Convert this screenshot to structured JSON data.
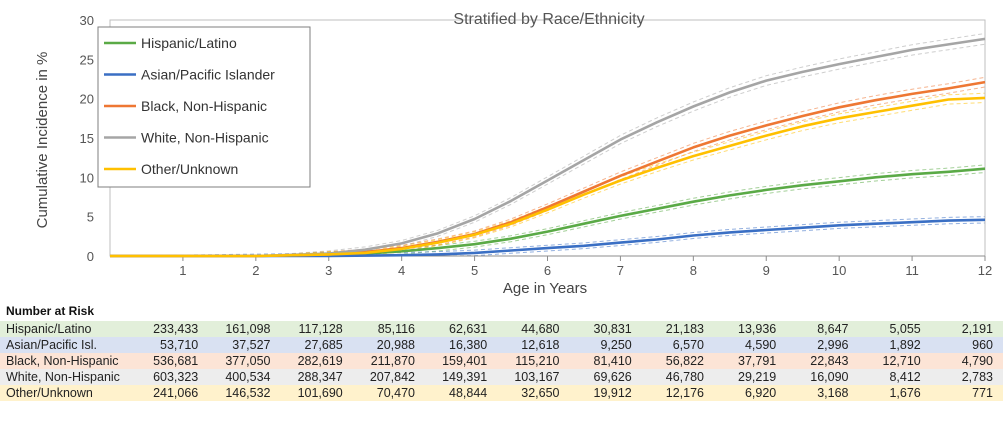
{
  "chart_data": {
    "type": "line",
    "title": "Stratified by Race/Ethnicity",
    "xlabel": "Age in Years",
    "ylabel": "Cumulative Incidence in %",
    "xlim": [
      0,
      12
    ],
    "ylim": [
      0,
      30
    ],
    "xticks": [
      1,
      2,
      3,
      4,
      5,
      6,
      7,
      8,
      9,
      10,
      11,
      12
    ],
    "yticks": [
      0,
      5,
      10,
      15,
      20,
      25,
      30
    ],
    "grid": false,
    "legend_position": "top-left",
    "confidence_band": "dashed",
    "series": [
      {
        "name": "Hispanic/Latino",
        "color": "#5aaa46",
        "x": [
          0,
          2,
          3,
          3.5,
          4,
          4.5,
          5,
          5.5,
          6,
          6.5,
          7,
          7.5,
          8,
          8.5,
          9,
          9.5,
          10,
          10.5,
          11,
          11.5,
          12
        ],
        "y": [
          0,
          0,
          0.15,
          0.3,
          0.6,
          1.0,
          1.5,
          2.2,
          3.1,
          4.1,
          5.1,
          6.0,
          6.9,
          7.7,
          8.4,
          9.0,
          9.5,
          10.0,
          10.4,
          10.7,
          11.1
        ]
      },
      {
        "name": "Asian/Pacific Islander",
        "color": "#3a6fc4",
        "x": [
          0,
          3,
          4,
          4.5,
          5,
          5.5,
          6,
          6.5,
          7,
          7.5,
          8,
          8.5,
          9,
          9.5,
          10,
          10.5,
          11,
          11.5,
          12
        ],
        "y": [
          0,
          0,
          0.1,
          0.2,
          0.4,
          0.7,
          1.0,
          1.3,
          1.7,
          2.1,
          2.6,
          3.0,
          3.3,
          3.6,
          3.9,
          4.1,
          4.3,
          4.5,
          4.6
        ]
      },
      {
        "name": "Black, Non-Hispanic",
        "color": "#ee7733",
        "x": [
          0,
          2,
          3,
          3.5,
          4,
          4.5,
          5,
          5.5,
          6,
          6.5,
          7,
          7.5,
          8,
          8.5,
          9,
          9.5,
          10,
          10.5,
          11,
          11.5,
          12
        ],
        "y": [
          0,
          0,
          0.2,
          0.5,
          1.0,
          1.8,
          2.8,
          4.3,
          6.2,
          8.2,
          10.2,
          12.0,
          13.8,
          15.3,
          16.6,
          17.8,
          18.9,
          19.8,
          20.6,
          21.3,
          22.1
        ]
      },
      {
        "name": "White, Non-Hispanic",
        "color": "#a5a5a5",
        "x": [
          0,
          2,
          3,
          3.5,
          4,
          4.5,
          5,
          5.5,
          6,
          6.5,
          7,
          7.5,
          8,
          8.5,
          9,
          9.5,
          10,
          10.5,
          11,
          11.5,
          12
        ],
        "y": [
          0,
          0,
          0.3,
          0.8,
          1.6,
          2.9,
          4.7,
          7.0,
          9.6,
          12.2,
          14.8,
          17.0,
          19.0,
          20.8,
          22.3,
          23.4,
          24.4,
          25.3,
          26.2,
          26.9,
          27.6
        ]
      },
      {
        "name": "Other/Unknown",
        "color": "#ffc000",
        "x": [
          0,
          2,
          3,
          3.5,
          4,
          4.5,
          5,
          5.5,
          6,
          6.5,
          7,
          7.5,
          8,
          8.5,
          9,
          9.5,
          10,
          10.5,
          11,
          11.5,
          12
        ],
        "y": [
          0,
          0,
          0.2,
          0.4,
          0.9,
          1.7,
          2.7,
          4.1,
          5.9,
          7.8,
          9.6,
          11.2,
          12.7,
          14.0,
          15.3,
          16.5,
          17.5,
          18.3,
          19.1,
          19.9,
          20.1
        ]
      }
    ]
  },
  "risk_table": {
    "title": "Number at Risk",
    "rows": [
      {
        "label": "Hispanic/Latino",
        "bg": "#e2efda",
        "values": [
          "233,433",
          "161,098",
          "117,128",
          "85,116",
          "62,631",
          "44,680",
          "30,831",
          "21,183",
          "13,936",
          "8,647",
          "5,055",
          "2,191"
        ]
      },
      {
        "label": "Asian/Pacific Isl.",
        "bg": "#d9e1f2",
        "values": [
          "53,710",
          "37,527",
          "27,685",
          "20,988",
          "16,380",
          "12,618",
          "9,250",
          "6,570",
          "4,590",
          "2,996",
          "1,892",
          "960"
        ]
      },
      {
        "label": "Black, Non-Hispanic",
        "bg": "#fce4d6",
        "values": [
          "536,681",
          "377,050",
          "282,619",
          "211,870",
          "159,401",
          "115,210",
          "81,410",
          "56,822",
          "37,791",
          "22,843",
          "12,710",
          "4,790"
        ]
      },
      {
        "label": "White, Non-Hispanic",
        "bg": "#ededed",
        "values": [
          "603,323",
          "400,534",
          "288,347",
          "207,842",
          "149,391",
          "103,167",
          "69,626",
          "46,780",
          "29,219",
          "16,090",
          "8,412",
          "2,783"
        ]
      },
      {
        "label": "Other/Unknown",
        "bg": "#fff2cc",
        "values": [
          "241,066",
          "146,532",
          "101,690",
          "70,470",
          "48,844",
          "32,650",
          "19,912",
          "12,176",
          "6,920",
          "3,168",
          "1,676",
          "771"
        ]
      }
    ]
  }
}
